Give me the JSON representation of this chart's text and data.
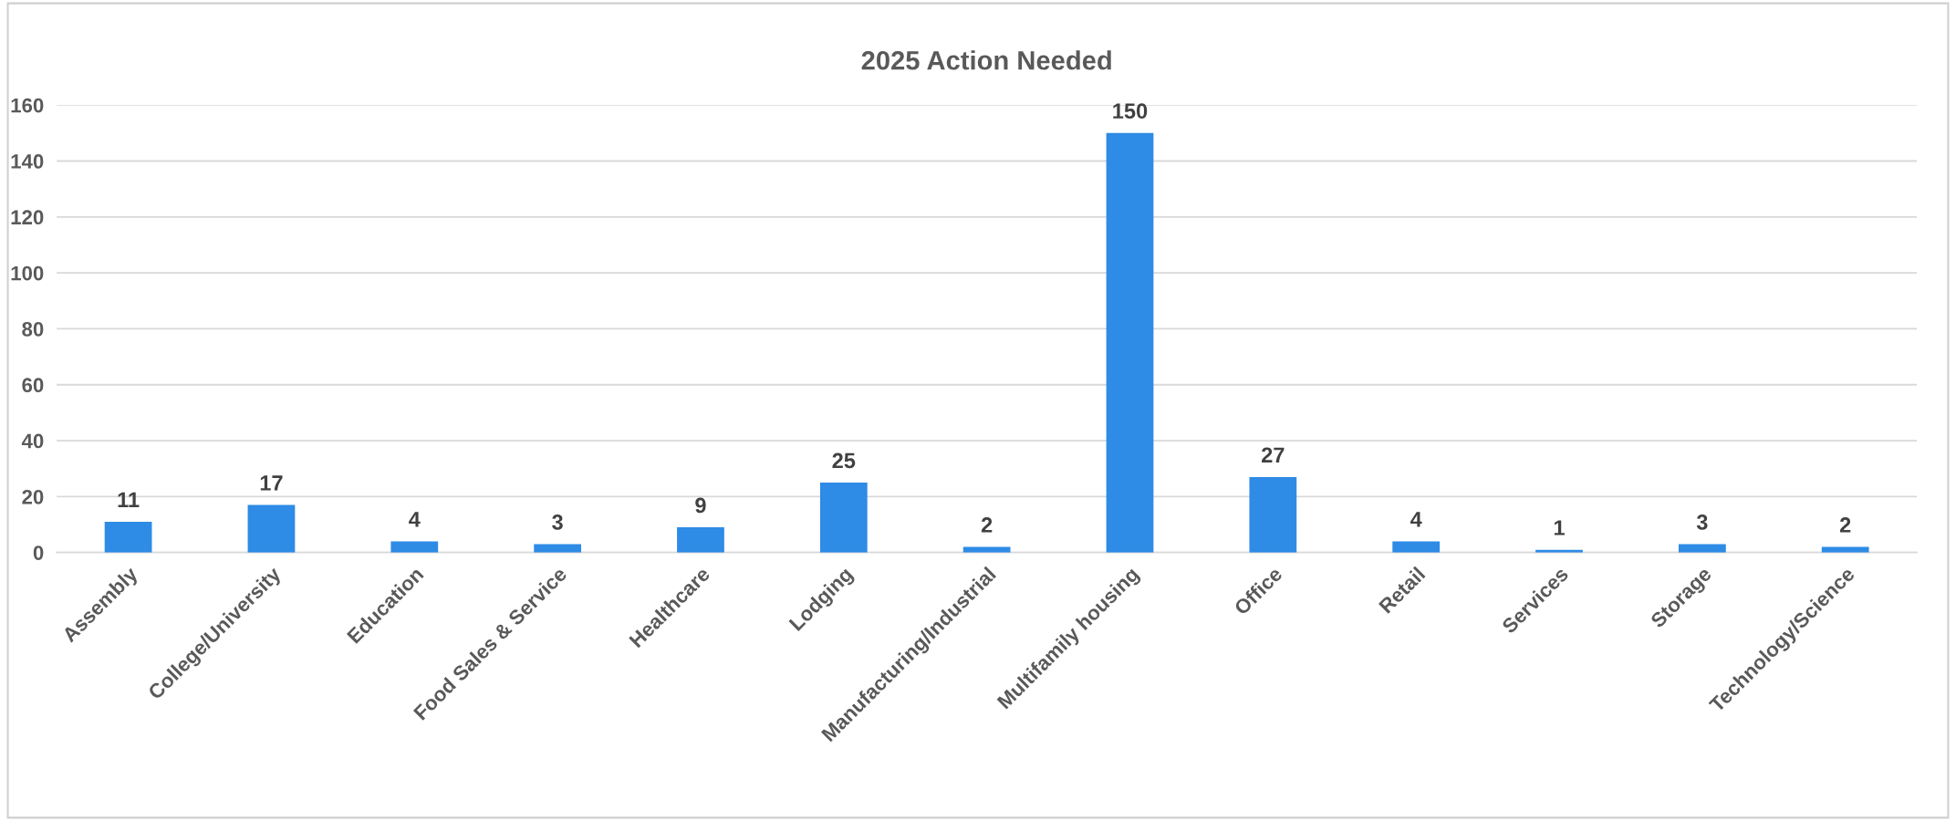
{
  "chart_data": {
    "type": "bar",
    "title": "2025 Action Needed",
    "categories": [
      "Assembly",
      "College/University",
      "Education",
      "Food Sales & Service",
      "Healthcare",
      "Lodging",
      "Manufacturing/Industrial",
      "Multifamily housing",
      "Office",
      "Retail",
      "Services",
      "Storage",
      "Technology/Science"
    ],
    "values": [
      11,
      17,
      4,
      3,
      9,
      25,
      2,
      150,
      27,
      4,
      1,
      3,
      2
    ],
    "color": "#2e8be6",
    "ylim": [
      0,
      160
    ],
    "yticks": [
      0,
      20,
      40,
      60,
      80,
      100,
      120,
      140,
      160
    ],
    "grid": "y",
    "data_labels": true
  }
}
